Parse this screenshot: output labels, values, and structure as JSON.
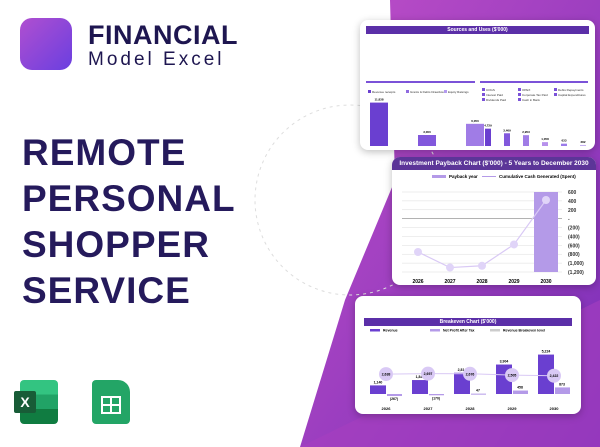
{
  "brand": {
    "line1": "FINANCIAL",
    "line2": "Model Excel"
  },
  "title_lines": [
    "REMOTE",
    "PERSONAL",
    "SHOPPER",
    "SERVICE"
  ],
  "colors": {
    "accent": "#5b2fa8",
    "light": "#c9b3f0",
    "brand_dark": "#1e1650"
  },
  "icons": [
    "excel-icon",
    "google-sheets-icon"
  ],
  "sources_uses": {
    "title": "Sources and Uses ($'000)",
    "legend_left": [
      "Revenue receipts",
      "Grants & Debts Drawdowns",
      "Equity Raisings"
    ],
    "legend_right": [
      "COGS",
      "OPEX",
      "Debts Repayments",
      "Interest Paid",
      "Corporate Tax Paid",
      "Capital Expenditures",
      "Dividends Paid",
      "Cash in Bank"
    ],
    "chart_data": [
      {
        "type": "bar",
        "categories": [
          "Revenue receipts",
          "Grants & Debts Drawdowns",
          "Equity Raisings"
        ],
        "values": [
          11838,
          3000,
          6050
        ],
        "labels": [
          "11,838",
          "3,000",
          "6,050"
        ]
      },
      {
        "type": "bar",
        "categories": [
          "COGS",
          "OPEX",
          "Debts Repayments",
          "Interest Paid",
          "Corporate Tax Paid",
          "Capital Expenditures",
          "Dividends Paid",
          "Cash in Bank"
        ],
        "values": [
          4729,
          3469,
          2953,
          1058,
          633,
          282,
          0,
          6089
        ],
        "labels": [
          "4,729",
          "3,469",
          "2,953",
          "1,058",
          "633",
          "282",
          "0",
          "6,089"
        ]
      }
    ]
  },
  "payback": {
    "title": "Investment Payback Chart ($'000) - 5 Years to December 2030",
    "chart_data": {
      "type": "line",
      "title": "Investment Payback Chart ($'000) - 5 Years to December 2030",
      "x": [
        "2026",
        "2027",
        "2028",
        "2029",
        "2030"
      ],
      "series": [
        {
          "name": "Cumulative Cash Generated (Spent)",
          "values": [
            -750,
            -1100,
            -1060,
            -580,
            420
          ]
        },
        {
          "name": "Payback year",
          "type": "bar",
          "values": [
            0,
            0,
            0,
            0,
            1
          ]
        }
      ],
      "ylim": [
        -1200,
        600
      ],
      "yticks": [
        "600",
        "400",
        "200",
        "-",
        "(200)",
        "(400)",
        "(600)",
        "(800)",
        "(1,000)",
        "(1,200)"
      ],
      "grid": true,
      "legend": "top"
    }
  },
  "breakeven": {
    "title": "Breakeven Chart ($'000)",
    "chart_data": {
      "type": "bar",
      "x": [
        "2026",
        "2027",
        "2028",
        "2029",
        "2030"
      ],
      "series": [
        {
          "name": "Revenue",
          "values": [
            1140,
            1848,
            2814,
            3904,
            5224
          ],
          "labels": [
            "1,140",
            "1,848",
            "2,814",
            "3,904",
            "5,224"
          ]
        },
        {
          "name": "Net Profit After Tax",
          "values": [
            -267,
            -170,
            47,
            458,
            873
          ],
          "labels": [
            "(267)",
            "(170)",
            "47",
            "458",
            "873"
          ]
        },
        {
          "name": "Revenue Breakeven level",
          "type": "line",
          "values": [
            2638,
            2697,
            2676,
            2505,
            2422
          ],
          "labels": [
            "2,638",
            "2,697",
            "2,676",
            "2,505",
            "2,422"
          ]
        }
      ],
      "legend": "top"
    }
  }
}
